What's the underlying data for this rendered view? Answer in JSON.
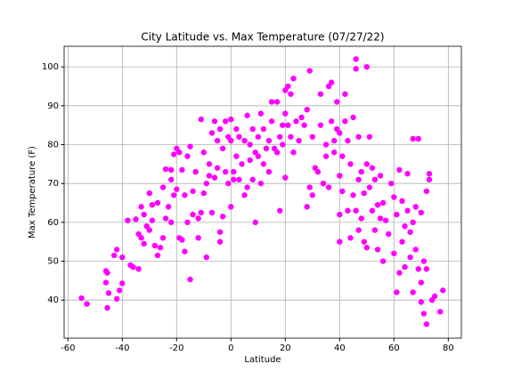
{
  "chart_data": {
    "type": "scatter",
    "title": "City Latitude vs. Max Temperature (07/27/22)",
    "x_label": "Latitude",
    "y_label": "Max Temperature (F)",
    "color": "#ff00ff",
    "grid": true,
    "xlim": [
      -61.4,
      84.8
    ],
    "ylim": [
      30.2,
      105.3
    ],
    "xticks": [
      -60,
      -40,
      -20,
      0,
      20,
      40,
      60,
      80
    ],
    "yticks": [
      40,
      50,
      60,
      70,
      80,
      90,
      100
    ],
    "x": [
      -55,
      -53,
      -46,
      -45.5,
      -46,
      -45,
      -45.5,
      -43,
      -42,
      -42,
      -41,
      -40,
      -40,
      -38,
      -37,
      -36,
      -35,
      -34,
      -34,
      -33,
      -33,
      -32,
      -32,
      -31,
      -30,
      -30,
      -29,
      -29,
      -28,
      -27,
      -27,
      -26,
      -25,
      -25,
      -24,
      -24,
      -23,
      -22,
      -22,
      -22,
      -21,
      -21,
      -20,
      -20,
      -19,
      -19,
      -18,
      -18,
      -17,
      -17,
      -16,
      -16,
      -15,
      -15,
      -14,
      -14,
      -13,
      -12,
      -12,
      -11,
      -11,
      -10,
      -10,
      -9,
      -9,
      -8,
      -8,
      -7,
      -7,
      -6,
      -6,
      -5,
      -5,
      -4,
      -4,
      -4,
      -3,
      -3,
      -2,
      -2,
      -1,
      -1,
      0,
      0,
      0,
      1,
      1,
      2,
      2,
      3,
      3,
      4,
      5,
      5,
      6,
      6,
      7,
      7,
      8,
      8,
      9,
      9,
      10,
      10,
      11,
      11,
      12,
      12,
      13,
      14,
      14,
      15,
      15,
      16,
      17,
      17,
      18,
      18,
      19,
      19,
      20,
      20,
      20,
      21,
      21,
      22,
      22,
      23,
      23,
      24,
      25,
      26,
      27,
      28,
      28,
      29,
      29,
      30,
      30,
      31,
      32,
      33,
      33,
      34,
      35,
      35,
      36,
      36,
      37,
      37,
      38,
      38,
      39,
      39,
      40,
      40,
      40,
      40,
      41,
      41,
      42,
      42,
      43,
      43,
      44,
      44,
      45,
      45,
      46,
      46,
      46,
      47,
      47,
      47,
      48,
      48,
      49,
      49,
      50,
      50,
      50,
      51,
      51,
      52,
      52,
      53,
      53,
      54,
      54,
      55,
      55,
      56,
      56,
      57,
      58,
      59,
      60,
      60,
      61,
      61,
      62,
      62,
      63,
      63,
      64,
      64,
      65,
      65,
      66,
      66,
      67,
      67,
      67,
      68,
      68,
      69,
      69,
      70,
      70,
      70,
      71,
      71,
      72,
      72,
      72,
      73,
      73,
      74,
      75,
      78,
      77
    ],
    "y": [
      40.5,
      39,
      47.5,
      47,
      44.5,
      41.8,
      38,
      51.5,
      53,
      40.3,
      42.5,
      44.3,
      51,
      60.5,
      49,
      48.5,
      60.8,
      57,
      48,
      56,
      64,
      62,
      54.5,
      59,
      58,
      67.5,
      64.5,
      60.5,
      54,
      65,
      51.5,
      53.5,
      69,
      56,
      73.7,
      61,
      64,
      71,
      73.5,
      60,
      77.5,
      67,
      79,
      68.5,
      78,
      56,
      73.5,
      55.5,
      67,
      52.5,
      60,
      77,
      45.3,
      79.5,
      68,
      62,
      73,
      61,
      56,
      86.5,
      62.5,
      78,
      67.5,
      70,
      51,
      75,
      72,
      83,
      62.5,
      86,
      71.5,
      74,
      81,
      84,
      57.5,
      55,
      79,
      61.5,
      73,
      86,
      82,
      70,
      86.5,
      64,
      81,
      71,
      73,
      77,
      84,
      71,
      82,
      75,
      81,
      67,
      87.5,
      69,
      76,
      80,
      84,
      71,
      60,
      78,
      82,
      77,
      88,
      70,
      84,
      75,
      79,
      81,
      73,
      91,
      86,
      79,
      78,
      91,
      63,
      82,
      85,
      80,
      94,
      88,
      71.5,
      95,
      85,
      93,
      82,
      97,
      78,
      86,
      81,
      87,
      85,
      89,
      64,
      99,
      69,
      82,
      67,
      74,
      73,
      93,
      85,
      70,
      80,
      77,
      95,
      69,
      86,
      96,
      81,
      78,
      84,
      91,
      83,
      72,
      62,
      55,
      77,
      68,
      93,
      86,
      81,
      63,
      75,
      56,
      87,
      67,
      102,
      99.5,
      63,
      82,
      71,
      58,
      73,
      61,
      67.5,
      55,
      100,
      75,
      53.5,
      82,
      69,
      74,
      63,
      71,
      58,
      64.5,
      53,
      72,
      61,
      50,
      65,
      60.5,
      57,
      70,
      66.5,
      52,
      42,
      62,
      73.5,
      47,
      55,
      65.5,
      48.5,
      59,
      72.5,
      63,
      51,
      57.5,
      81.5,
      42,
      60,
      64,
      53,
      81.5,
      48,
      62.5,
      44.5,
      39.5,
      36.5,
      50,
      33.8,
      68,
      48,
      71,
      72.5,
      40,
      41,
      42.5,
      37
    ]
  }
}
